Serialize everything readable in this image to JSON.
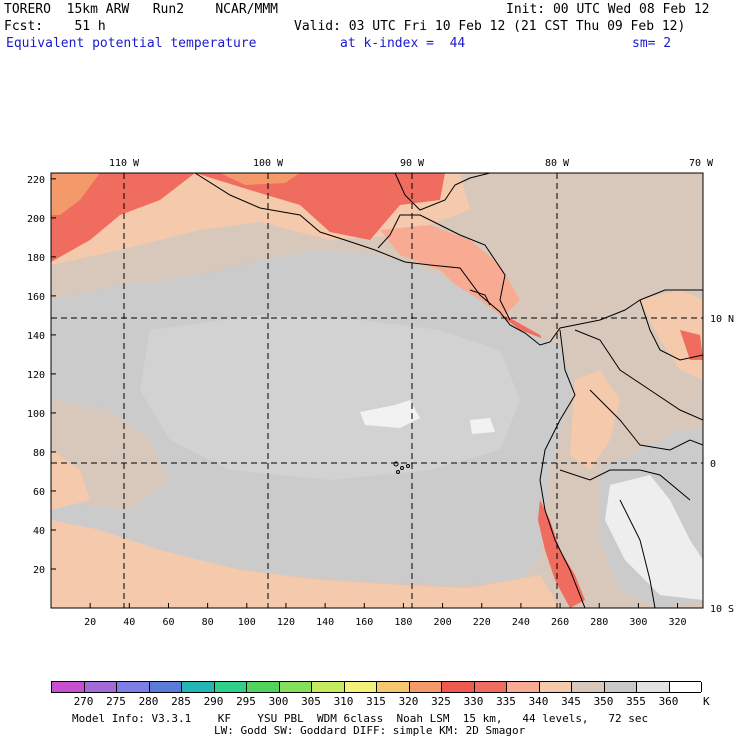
{
  "header": {
    "model": "TORERO",
    "resolution": "15km ARW",
    "run": "Run2",
    "org": "NCAR/MMM",
    "init": "Init: 00 UTC Wed 08 Feb 12",
    "fcst_label": "Fcst:",
    "fcst_value": "51 h",
    "valid": "Valid: 03 UTC Fri 10 Feb 12 (21 CST Thu 09 Feb 12)",
    "field": "Equivalent potential temperature",
    "level": "at k-index =  44",
    "smoothing": "sm= 2"
  },
  "axes": {
    "top_lon": [
      "110 W",
      "100 W",
      "90 W",
      "80 W",
      "70 W"
    ],
    "right_lat": [
      "10 N",
      "0",
      "10 S"
    ],
    "left_y": [
      "220",
      "200",
      "180",
      "160",
      "140",
      "120",
      "100",
      "80",
      "60",
      "40",
      "20"
    ],
    "bottom_x": [
      "20",
      "40",
      "60",
      "80",
      "100",
      "120",
      "140",
      "160",
      "180",
      "200",
      "220",
      "240",
      "260",
      "280",
      "300",
      "320"
    ]
  },
  "colorbar": {
    "unit": "K",
    "labels": [
      "270",
      "275",
      "280",
      "285",
      "290",
      "295",
      "300",
      "305",
      "310",
      "315",
      "320",
      "325",
      "330",
      "335",
      "340",
      "345",
      "350",
      "355",
      "360"
    ],
    "colors": [
      "#c84fd0",
      "#a46ad8",
      "#7f7ee6",
      "#5a7cd6",
      "#24b6b2",
      "#2ed08c",
      "#52d45c",
      "#86de5a",
      "#c6ea5e",
      "#f4f07a",
      "#f6c86e",
      "#f49a6a",
      "#ee5a4e",
      "#f06c5e",
      "#f8ab92",
      "#f5c9ac",
      "#d8c8bc",
      "#c9c9c9",
      "#e2e2e2",
      "#ffffff"
    ]
  },
  "footer": {
    "line1": "Model Info: V3.3.1    KF    YSU PBL  WDM 6class  Noah LSM  15 km,   44 levels,   72 sec",
    "line2": "LW: Godd SW: Goddard DIFF: simple KM: 2D Smagor"
  },
  "map_colors": {
    "ocean_grey": "#cbcbcb",
    "tan": "#d8c8bc",
    "peach": "#f5c9ac",
    "salmon": "#f8ab92",
    "red": "#f06c5e",
    "orange": "#f49a6a",
    "white": "#f2f2f2",
    "line": "#000000"
  }
}
